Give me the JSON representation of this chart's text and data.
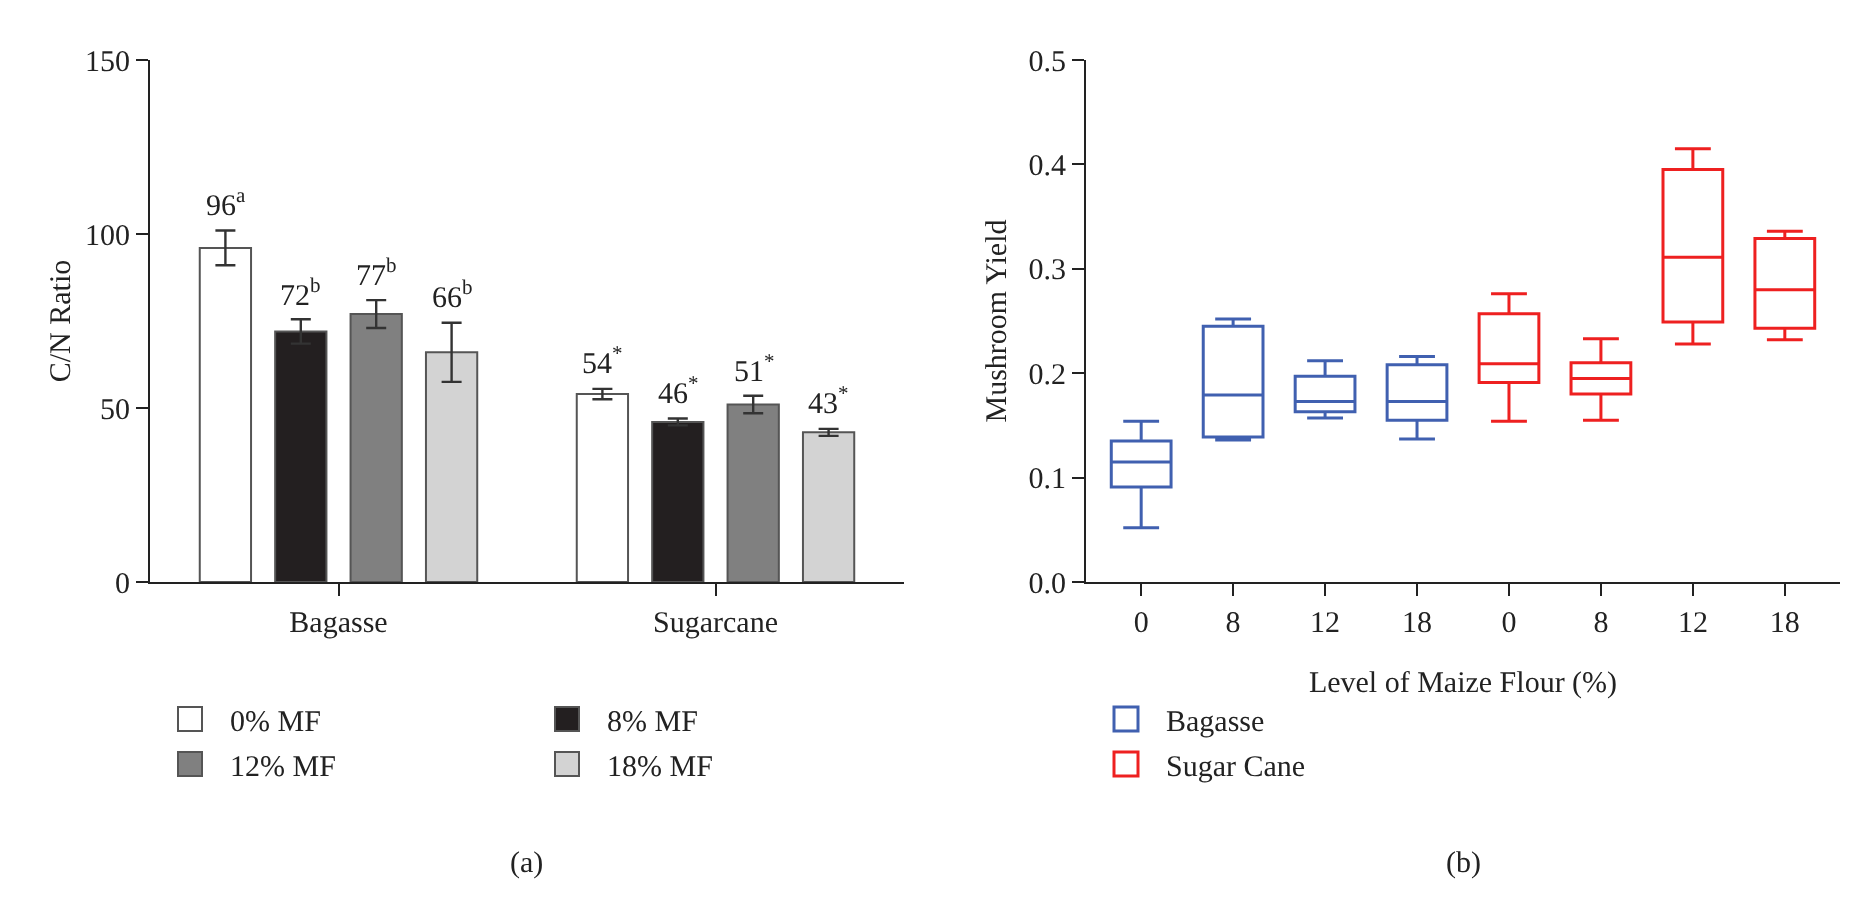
{
  "chart_data": [
    {
      "type": "bar",
      "ylabel": "C/N Ratio",
      "categories": [
        "Bagasse",
        "Sugarcane"
      ],
      "ylim": [
        0,
        150
      ],
      "yticks": [
        0,
        50,
        100,
        150
      ],
      "grid": false,
      "legend": "bottom",
      "annotations": [
        "(a)"
      ],
      "series": [
        {
          "name": "0% MF",
          "color": "#ffffff",
          "values": [
            96,
            54
          ],
          "errors": [
            5,
            1.5
          ],
          "value_labels": [
            "96$^{a}$",
            "54$^{*}$"
          ]
        },
        {
          "name": "8% MF",
          "color": "#231f20",
          "values": [
            72,
            46
          ],
          "errors": [
            3.5,
            1
          ],
          "value_labels": [
            "72$^{b}$",
            "46$^{*}$"
          ]
        },
        {
          "name": "12% MF",
          "color": "#808080",
          "values": [
            77,
            51
          ],
          "errors": [
            4,
            2.5
          ],
          "value_labels": [
            "77$^{b}$",
            "51$^{*}$"
          ]
        },
        {
          "name": "18% MF",
          "color": "#d3d3d3",
          "values": [
            66,
            43
          ],
          "errors": [
            8.5,
            1
          ],
          "value_labels": [
            "66$^{b}$",
            "43$^{*}$"
          ]
        }
      ]
    },
    {
      "type": "box",
      "xlabel": "Level of Maize Flour (%)",
      "ylabel": "Mushroom Yield",
      "categories": [
        "0",
        "8",
        "12",
        "18",
        "0",
        "8",
        "12",
        "18"
      ],
      "ylim": [
        0,
        0.5
      ],
      "yticks": [
        {
          "value": 0,
          "label": "0.0"
        },
        0.1,
        0.2,
        0.3,
        0.4,
        0.5
      ],
      "grid": false,
      "legend": "bottom left",
      "annotations": [
        "(b)"
      ],
      "series": [
        {
          "name": "Bagasse",
          "color": "#4060b0",
          "boxes": [
            {
              "low": 0.052,
              "q1": 0.091,
              "median": 0.115,
              "q3": 0.135,
              "high": 0.154
            },
            {
              "low": 0.136,
              "q1": 0.139,
              "median": 0.179,
              "q3": 0.245,
              "high": 0.252
            },
            {
              "low": 0.157,
              "q1": 0.163,
              "median": 0.173,
              "q3": 0.197,
              "high": 0.212
            },
            {
              "low": 0.137,
              "q1": 0.155,
              "median": 0.173,
              "q3": 0.208,
              "high": 0.216
            },
            null,
            null,
            null,
            null
          ]
        },
        {
          "name": "Sugar Cane",
          "color": "#ee2020",
          "boxes": [
            null,
            null,
            null,
            null,
            {
              "low": 0.154,
              "q1": 0.191,
              "median": 0.209,
              "q3": 0.257,
              "high": 0.276
            },
            {
              "low": 0.155,
              "q1": 0.18,
              "median": 0.195,
              "q3": 0.21,
              "high": 0.233
            },
            {
              "low": 0.228,
              "q1": 0.249,
              "median": 0.311,
              "q3": 0.395,
              "high": 0.415
            },
            {
              "low": 0.232,
              "q1": 0.243,
              "median": 0.28,
              "q3": 0.329,
              "high": 0.336
            }
          ]
        }
      ]
    }
  ]
}
